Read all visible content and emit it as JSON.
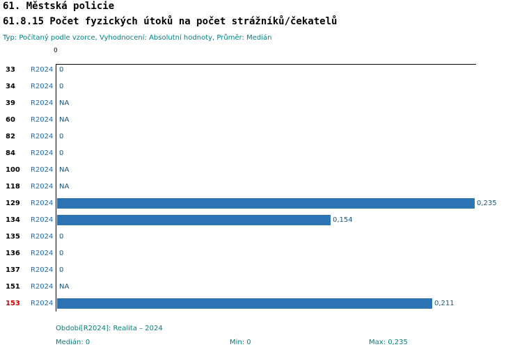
{
  "header": {
    "title": "61. Městská policie",
    "subtitle": "61.8.15 Počet fyzických útoků na počet strážníků/čekatelů",
    "meta": "Typ: Počítaný podle vzorce, Vyhodnocení: Absolutní hodnoty, Průměr: Medián"
  },
  "chart_data": {
    "type": "bar",
    "orientation": "horizontal",
    "title": "61.8.15 Počet fyzických útoků na počet strážníků/čekatelů",
    "series_label": "R2024",
    "categories": [
      "33",
      "34",
      "39",
      "60",
      "82",
      "84",
      "100",
      "118",
      "129",
      "134",
      "135",
      "136",
      "137",
      "151",
      "153"
    ],
    "values": [
      0,
      0,
      null,
      null,
      0,
      0,
      null,
      null,
      0.235,
      0.154,
      0,
      0,
      0,
      null,
      0.211
    ],
    "value_labels": [
      "0",
      "0",
      "NA",
      "NA",
      "0",
      "0",
      "NA",
      "NA",
      "0,235",
      "0,154",
      "0",
      "0",
      "0",
      "NA",
      "0,211"
    ],
    "na_label": "NA",
    "highlighted_category": "153",
    "x_axis": {
      "tick_label": "0",
      "min": 0,
      "max": 0.235
    },
    "bar_color": "#2d74b5",
    "grid": false,
    "legend_position": "none"
  },
  "footer": {
    "period": "Období[R2024]: Realita – 2024",
    "median": "Medián: 0",
    "min": "Min: 0",
    "max": "Max: 0,235"
  },
  "colors": {
    "title": "#000000",
    "meta_text": "#008080",
    "series_label": "#1a6bb8",
    "value_label": "#17557f",
    "bar": "#2d74b5",
    "highlight": "#cc0000",
    "axis": "#000000"
  }
}
